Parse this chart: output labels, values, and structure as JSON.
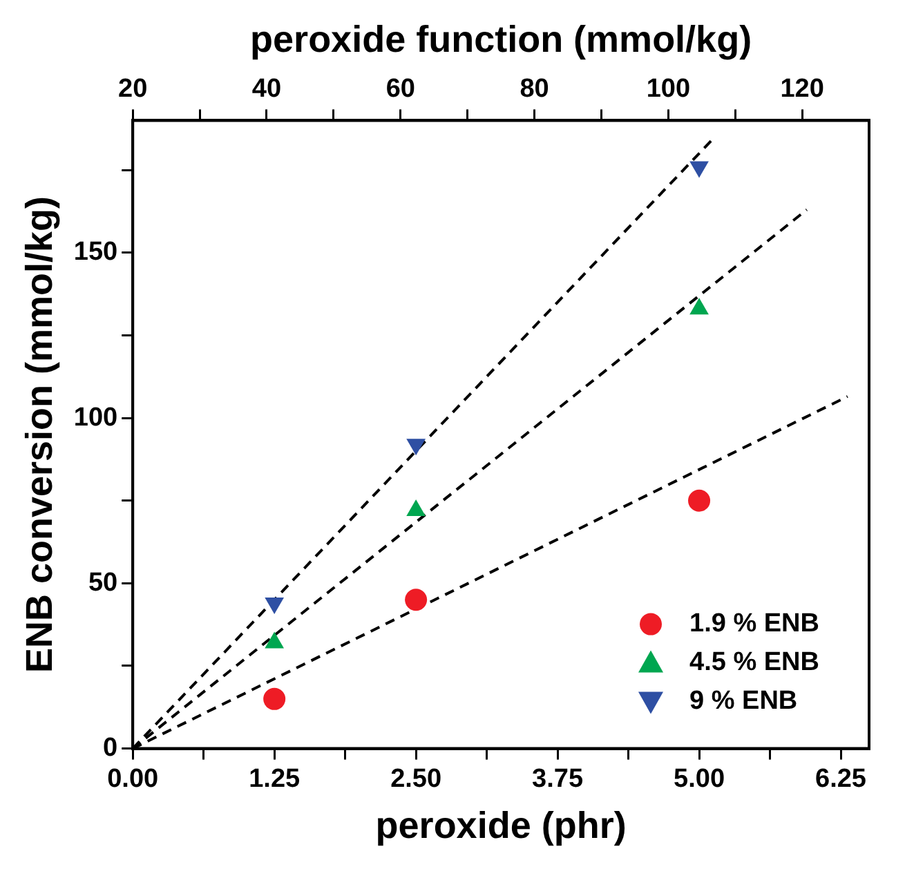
{
  "chart_data": {
    "type": "scatter",
    "xlabel": "peroxide (phr)",
    "ylabel": "ENB conversion (mmol/kg)",
    "x2label": "peroxide function (mmol/kg)",
    "xlim": [
      0,
      6.5
    ],
    "xticks": [
      {
        "value": 0,
        "label": "0.00"
      },
      {
        "value": 0.625,
        "label": null
      },
      {
        "value": 1.25,
        "label": "1.25"
      },
      {
        "value": 1.875,
        "label": null
      },
      {
        "value": 2.5,
        "label": "2.50"
      },
      {
        "value": 3.125,
        "label": null
      },
      {
        "value": 3.75,
        "label": "3.75"
      },
      {
        "value": 4.375,
        "label": null
      },
      {
        "value": 5,
        "label": "5.00"
      },
      {
        "value": 5.625,
        "label": null
      },
      {
        "value": 6.25,
        "label": "6.25"
      }
    ],
    "x2lim": [
      20,
      130
    ],
    "x2ticks": [
      {
        "value": 20,
        "label": "20"
      },
      {
        "value": 30,
        "label": null
      },
      {
        "value": 40,
        "label": "40"
      },
      {
        "value": 50,
        "label": null
      },
      {
        "value": 60,
        "label": "60"
      },
      {
        "value": 70,
        "label": null
      },
      {
        "value": 80,
        "label": "80"
      },
      {
        "value": 90,
        "label": null
      },
      {
        "value": 100,
        "label": "100"
      },
      {
        "value": 110,
        "label": null
      },
      {
        "value": 120,
        "label": "120"
      }
    ],
    "ylim": [
      0,
      190
    ],
    "yticks": [
      {
        "value": 0,
        "label": "0"
      },
      {
        "value": 25,
        "label": null
      },
      {
        "value": 50,
        "label": "50"
      },
      {
        "value": 75,
        "label": null
      },
      {
        "value": 100,
        "label": "100"
      },
      {
        "value": 125,
        "label": null
      },
      {
        "value": 150,
        "label": "150"
      },
      {
        "value": 175,
        "label": null
      }
    ],
    "legend": "bottom right",
    "series": [
      {
        "name": "1.9 % ENB",
        "color": "#ee1c25",
        "marker": "circle",
        "x": [
          1.25,
          2.5,
          5
        ],
        "values": [
          15,
          45,
          75
        ]
      },
      {
        "name": "4.5 % ENB",
        "color": "#00a650",
        "marker": "triangle",
        "x": [
          1.25,
          2.5,
          5
        ],
        "values": [
          32,
          72,
          133
        ]
      },
      {
        "name": "9 % ENB",
        "color": "#2e4fa3",
        "marker": "triangle-down",
        "x": [
          1.25,
          2.5,
          5
        ],
        "values": [
          44,
          92,
          176
        ]
      },
      {
        "type": "line",
        "color": "#000000",
        "line_style": "dashed",
        "marker": "none",
        "x": [
          0,
          6.31
        ],
        "values": [
          0,
          106.5
        ]
      },
      {
        "type": "line",
        "color": "#000000",
        "line_style": "dashed",
        "marker": "none",
        "x": [
          0,
          5.95
        ],
        "values": [
          0,
          163
        ]
      },
      {
        "type": "line",
        "color": "#000000",
        "line_style": "dashed",
        "marker": "none",
        "x": [
          0,
          5.11
        ],
        "values": [
          0,
          184
        ]
      }
    ]
  }
}
